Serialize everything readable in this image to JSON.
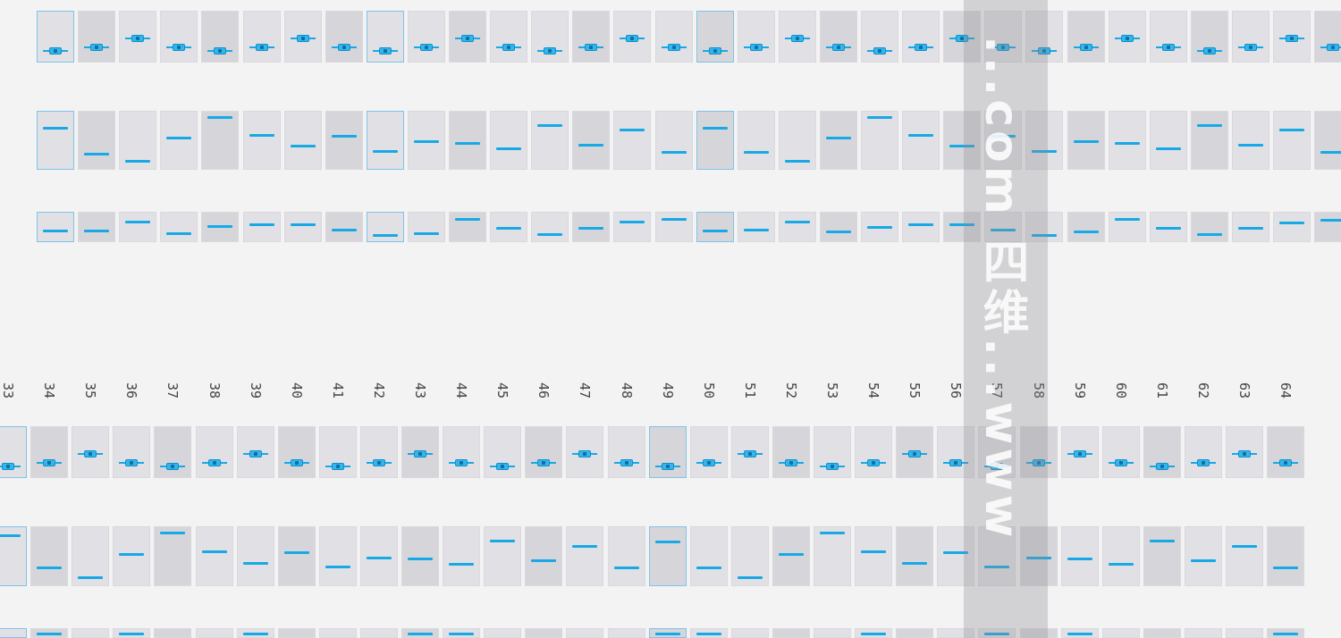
{
  "top": {
    "knobs": [
      0.15,
      0.25,
      0.45,
      0.25,
      0.15,
      0.25,
      0.45,
      0.25,
      0.15,
      0.25,
      0.45,
      0.25,
      0.15,
      0.25,
      0.45,
      0.25,
      0.15,
      0.25,
      0.45,
      0.25,
      0.15,
      0.25,
      0.45,
      0.25,
      0.15,
      0.25,
      0.45,
      0.25,
      0.15,
      0.25,
      0.45,
      0.25,
      0.15
    ],
    "bars": [
      0.75,
      0.25,
      0.1,
      0.55,
      0.95,
      0.6,
      0.4,
      0.58,
      0.3,
      0.48,
      0.45,
      0.35,
      0.8,
      0.42,
      0.7,
      0.28,
      0.75,
      0.28,
      0.1,
      0.55,
      0.95,
      0.6,
      0.4,
      0.58,
      0.3,
      0.48,
      0.45,
      0.35,
      0.8,
      0.42,
      0.7,
      0.28,
      0.22
    ],
    "lows": [
      0.35,
      0.35,
      0.75,
      0.25,
      0.55,
      0.6,
      0.6,
      0.4,
      0.15,
      0.25,
      0.85,
      0.45,
      0.2,
      0.45,
      0.75,
      0.85,
      0.35,
      0.4,
      0.75,
      0.3,
      0.5,
      0.6,
      0.6,
      0.4,
      0.15,
      0.3,
      0.85,
      0.45,
      0.2,
      0.45,
      0.7,
      0.8,
      0.85
    ],
    "selected": [
      0,
      8,
      16
    ]
  },
  "bottom": {
    "channels": [
      "33",
      "34",
      "35",
      "36",
      "37",
      "38",
      "39",
      "40",
      "41",
      "42",
      "43",
      "44",
      "45",
      "46",
      "47",
      "48",
      "49",
      "50",
      "51",
      "52",
      "53",
      "54",
      "55",
      "56",
      "57",
      "58",
      "59",
      "60",
      "61",
      "62",
      "63",
      "64"
    ],
    "knobs": [
      0.15,
      0.25,
      0.45,
      0.25,
      0.15,
      0.25,
      0.45,
      0.25,
      0.15,
      0.25,
      0.45,
      0.25,
      0.15,
      0.25,
      0.45,
      0.25,
      0.15,
      0.25,
      0.45,
      0.25,
      0.15,
      0.25,
      0.45,
      0.25,
      0.15,
      0.25,
      0.45,
      0.25,
      0.15,
      0.25,
      0.45,
      0.25
    ],
    "bars": [
      0.9,
      0.28,
      0.1,
      0.55,
      0.95,
      0.6,
      0.38,
      0.58,
      0.3,
      0.48,
      0.45,
      0.35,
      0.8,
      0.42,
      0.7,
      0.28,
      0.78,
      0.28,
      0.1,
      0.55,
      0.95,
      0.6,
      0.38,
      0.58,
      0.3,
      0.48,
      0.45,
      0.35,
      0.8,
      0.42,
      0.7,
      0.28
    ],
    "selected": [
      0,
      16
    ]
  },
  "watermark": "...com 四维...www"
}
